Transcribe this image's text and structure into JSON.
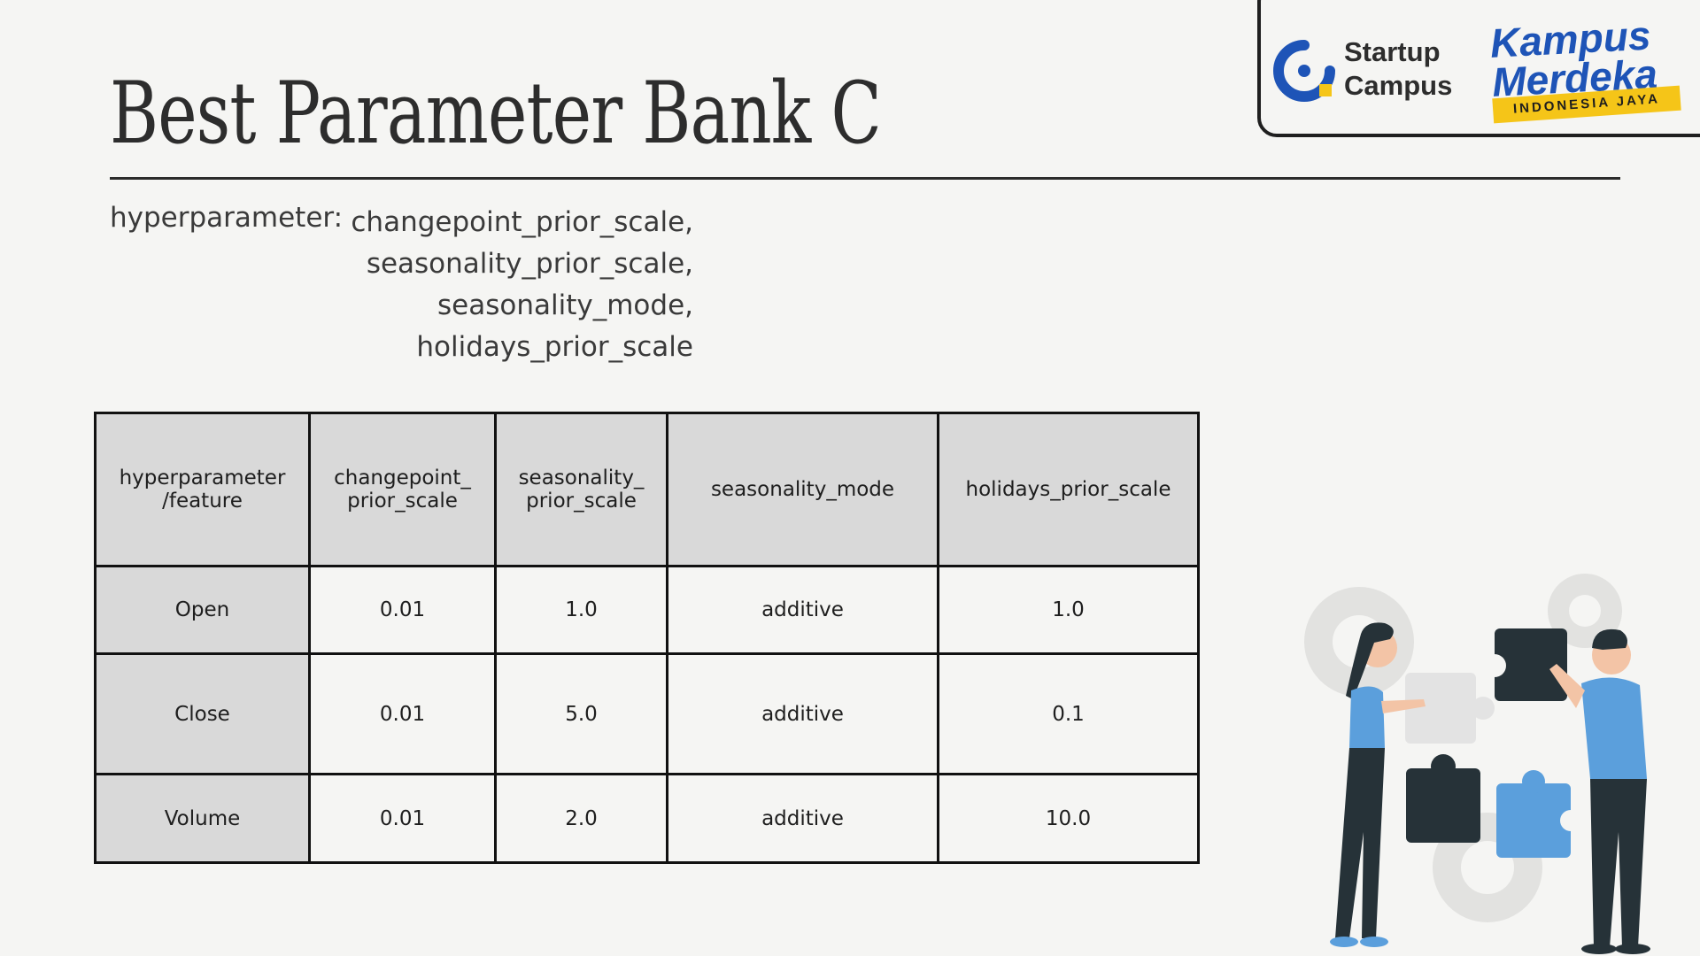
{
  "title": "Best Parameter Bank C",
  "hyperparameter_label": "hyperparameter:",
  "hyperparameter_items": [
    "changepoint_prior_scale,",
    "seasonality_prior_scale,",
    "seasonality_mode,",
    "holidays_prior_scale"
  ],
  "logos": {
    "startup_campus": [
      "Startup",
      "Campus"
    ],
    "kampus_merdeka": [
      "Kampus",
      "Merdeka"
    ],
    "kampus_merdeka_tagline": "INDONESIA JAYA"
  },
  "table": {
    "headers": [
      [
        "hyperparameter",
        "/feature"
      ],
      [
        "changepoint_",
        "prior_scale"
      ],
      [
        "seasonality_",
        "prior_scale"
      ],
      [
        "seasonality_mode"
      ],
      [
        "holidays_prior_scale"
      ]
    ],
    "rows": [
      {
        "feature": "Open",
        "values": [
          "0.01",
          "1.0",
          "additive",
          "1.0"
        ]
      },
      {
        "feature": "Close",
        "values": [
          "0.01",
          "5.0",
          "additive",
          "0.1"
        ]
      },
      {
        "feature": "Volume",
        "values": [
          "0.01",
          "2.0",
          "additive",
          "10.0"
        ]
      }
    ]
  },
  "colors": {
    "header_fill": "#d9d9d9",
    "background": "#f5f5f3",
    "brand_blue": "#1e54b7",
    "brand_yellow": "#f5c518",
    "illustration_blue": "#5b9fdc"
  },
  "icons": [
    "startup-campus-logo-icon",
    "kampus-merdeka-logo",
    "teamwork-puzzle-illustration"
  ]
}
